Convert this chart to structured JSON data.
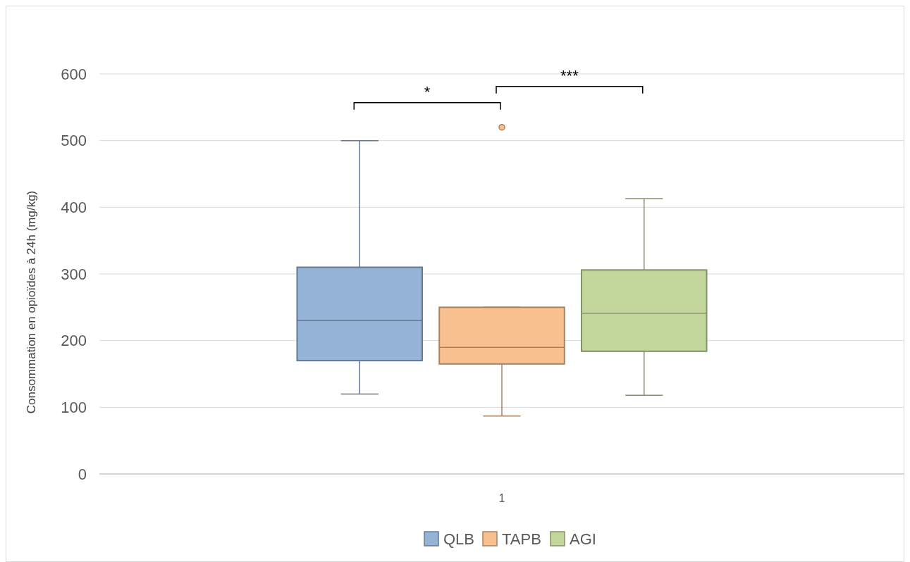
{
  "chart_data": {
    "type": "box",
    "ylabel": "Consommation en opioïdes à 24h (mg/kg)",
    "categories": [
      "1"
    ],
    "ylim": [
      0,
      600
    ],
    "yticks": [
      0,
      100,
      200,
      300,
      400,
      500,
      600
    ],
    "grid": "y",
    "legend": "bottom",
    "series": [
      {
        "name": "QLB",
        "color": "#95b3d7",
        "boxes": [
          {
            "low": 120,
            "q1": 170,
            "median": 230,
            "q3": 310,
            "high": 500
          }
        ]
      },
      {
        "name": "TAPB",
        "color": "#f9c08f",
        "boxes": [
          {
            "low": 87,
            "q1": 165,
            "median": 190,
            "q3": 250,
            "high": 250,
            "outliers": [
              520
            ]
          }
        ]
      },
      {
        "name": "AGI",
        "color": "#c3d69b",
        "boxes": [
          {
            "low": 118,
            "q1": 184,
            "median": 241,
            "q3": 306,
            "high": 413
          }
        ]
      }
    ],
    "annotations": [
      "*",
      "***"
    ]
  }
}
